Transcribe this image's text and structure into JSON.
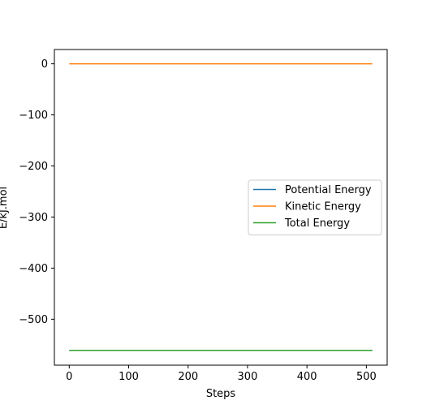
{
  "chart_data": {
    "type": "line",
    "title": "",
    "xlabel": "Steps",
    "ylabel": "E/kJ.mol",
    "xlim": [
      -25,
      535
    ],
    "ylim": [
      -590,
      28
    ],
    "xticks": [
      0,
      100,
      200,
      300,
      400,
      500
    ],
    "yticks": [
      0,
      -100,
      -200,
      -300,
      -400,
      -500
    ],
    "xtick_labels": [
      "0",
      "100",
      "200",
      "300",
      "400",
      "500"
    ],
    "ytick_labels": [
      "0",
      "−100",
      "−200",
      "−300",
      "−400",
      "−500"
    ],
    "grid": false,
    "legend_position": "center-right",
    "series": [
      {
        "name": "Potential Energy",
        "color": "#1f77b4",
        "x": [
          0,
          510
        ],
        "y": [
          -561,
          -561
        ]
      },
      {
        "name": "Kinetic Energy",
        "color": "#ff7f0e",
        "x": [
          0,
          510
        ],
        "y": [
          0,
          0
        ]
      },
      {
        "name": "Total Energy",
        "color": "#2ca02c",
        "x": [
          0,
          510
        ],
        "y": [
          -561,
          -561
        ]
      }
    ]
  }
}
